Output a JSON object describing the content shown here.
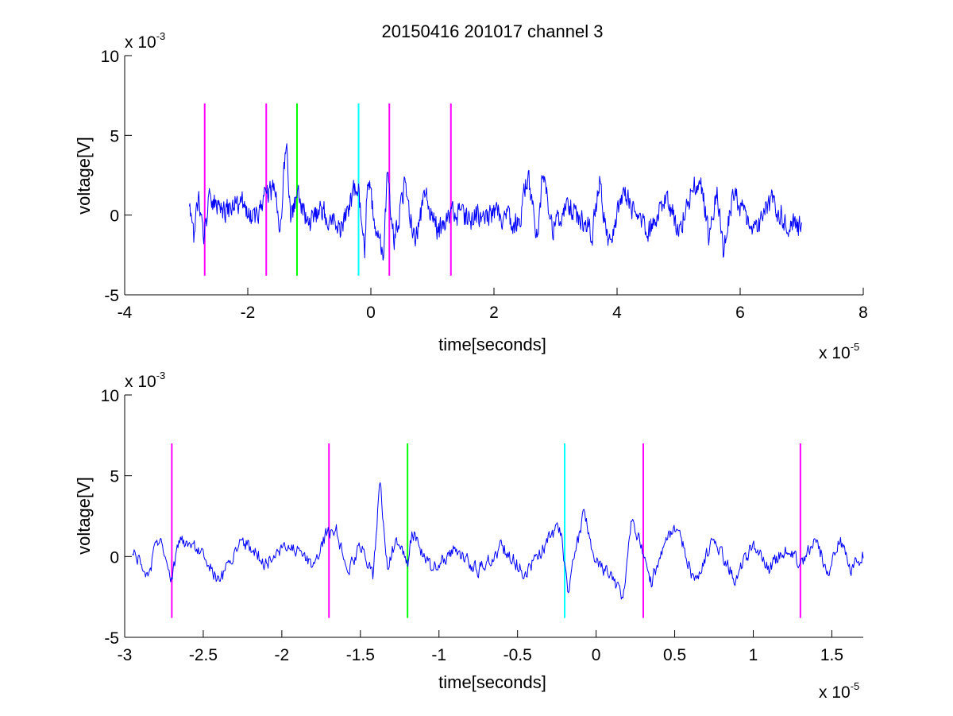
{
  "figure_title": "20150416 201017 channel 3",
  "chart_data": [
    {
      "type": "line",
      "title": "20150416 201017 channel 3",
      "xlabel": "time[seconds]",
      "ylabel": "voltage[V]",
      "x_multiplier_label": "x 10",
      "x_multiplier_exp": "-5",
      "y_multiplier_label": "x 10",
      "y_multiplier_exp": "-3",
      "xlim": [
        -4,
        8
      ],
      "ylim": [
        -5,
        10
      ],
      "x_scale": 1e-05,
      "y_scale": 0.001,
      "xticks": [
        -4,
        -2,
        0,
        2,
        4,
        6,
        8
      ],
      "xtick_labels": [
        "-4",
        "-2",
        "0",
        "2",
        "4",
        "6",
        "8"
      ],
      "yticks": [
        -5,
        0,
        5,
        10
      ],
      "ytick_labels": [
        "-5",
        "0",
        "5",
        "10"
      ],
      "grid": false,
      "signal": {
        "color": "#0000ff",
        "x_start": -2.95,
        "x_end": 7.0,
        "keypoints": [
          [
            -2.95,
            0.6
          ],
          [
            -2.88,
            -2.0
          ],
          [
            -2.8,
            1.3
          ],
          [
            -2.72,
            -2.3
          ],
          [
            -2.62,
            1.5
          ],
          [
            -2.4,
            0.3
          ],
          [
            -2.1,
            1.2
          ],
          [
            -1.9,
            -0.5
          ],
          [
            -1.72,
            1.5
          ],
          [
            -1.55,
            2.2
          ],
          [
            -1.47,
            -1.4
          ],
          [
            -1.38,
            6.3
          ],
          [
            -1.3,
            -0.4
          ],
          [
            -1.2,
            1.8
          ],
          [
            -1.0,
            -0.8
          ],
          [
            -0.8,
            0.4
          ],
          [
            -0.5,
            -1.2
          ],
          [
            -0.3,
            1.6
          ],
          [
            -0.22,
            2.8
          ],
          [
            -0.1,
            -2.7
          ],
          [
            -0.05,
            3.5
          ],
          [
            0.05,
            -0.5
          ],
          [
            0.2,
            -3.2
          ],
          [
            0.27,
            3.4
          ],
          [
            0.38,
            -2.3
          ],
          [
            0.55,
            2.8
          ],
          [
            0.72,
            -2.4
          ],
          [
            0.88,
            1.8
          ],
          [
            1.1,
            -1.5
          ],
          [
            1.3,
            0.3
          ],
          [
            1.6,
            -0.3
          ],
          [
            2.0,
            0.2
          ],
          [
            2.4,
            -0.8
          ],
          [
            2.55,
            3.5
          ],
          [
            2.7,
            -2.0
          ],
          [
            2.8,
            3.8
          ],
          [
            2.95,
            -1.2
          ],
          [
            3.2,
            1.0
          ],
          [
            3.6,
            -1.5
          ],
          [
            3.72,
            3.3
          ],
          [
            3.85,
            -2.6
          ],
          [
            4.1,
            1.8
          ],
          [
            4.5,
            -1.5
          ],
          [
            4.8,
            1.5
          ],
          [
            5.0,
            -1.3
          ],
          [
            5.2,
            1.8
          ],
          [
            5.35,
            3.2
          ],
          [
            5.5,
            -2.3
          ],
          [
            5.62,
            2.5
          ],
          [
            5.72,
            -3.2
          ],
          [
            5.9,
            2.0
          ],
          [
            6.2,
            -1.8
          ],
          [
            6.5,
            1.2
          ],
          [
            6.8,
            -0.9
          ],
          [
            7.0,
            -1.1
          ]
        ]
      },
      "markers": [
        {
          "x": -2.7,
          "color": "#ff00ff",
          "y0": -3.8,
          "y1": 7.0
        },
        {
          "x": -1.7,
          "color": "#ff00ff",
          "y0": -3.8,
          "y1": 7.0
        },
        {
          "x": -1.2,
          "color": "#00ff00",
          "y0": -3.8,
          "y1": 7.0
        },
        {
          "x": -0.2,
          "color": "#00ffff",
          "y0": -3.8,
          "y1": 7.0
        },
        {
          "x": 0.3,
          "color": "#ff00ff",
          "y0": -3.8,
          "y1": 7.0
        },
        {
          "x": 1.3,
          "color": "#ff00ff",
          "y0": -3.8,
          "y1": 7.0
        }
      ]
    },
    {
      "type": "line",
      "xlabel": "time[seconds]",
      "ylabel": "voltage[V]",
      "x_multiplier_label": "x 10",
      "x_multiplier_exp": "-5",
      "y_multiplier_label": "x 10",
      "y_multiplier_exp": "-3",
      "xlim": [
        -3.0,
        1.7
      ],
      "ylim": [
        -5,
        10
      ],
      "x_scale": 1e-05,
      "y_scale": 0.001,
      "xticks": [
        -3,
        -2.5,
        -2,
        -1.5,
        -1,
        -0.5,
        0,
        0.5,
        1,
        1.5
      ],
      "xtick_labels": [
        "-3",
        "-2.5",
        "-2",
        "-1.5",
        "-1",
        "-0.5",
        "0",
        "0.5",
        "1",
        "1.5"
      ],
      "yticks": [
        -5,
        0,
        5,
        10
      ],
      "ytick_labels": [
        "-5",
        "0",
        "5",
        "10"
      ],
      "grid": false,
      "signal": {
        "color": "#0000ff",
        "x_start": -2.95,
        "x_end": 1.7,
        "keypoints": [
          [
            -2.95,
            0.6
          ],
          [
            -2.9,
            -0.6
          ],
          [
            -2.85,
            -2.0
          ],
          [
            -2.8,
            1.2
          ],
          [
            -2.75,
            0.8
          ],
          [
            -2.71,
            -2.3
          ],
          [
            -2.65,
            1.5
          ],
          [
            -2.5,
            0.2
          ],
          [
            -2.4,
            -2.1
          ],
          [
            -2.25,
            1.4
          ],
          [
            -2.1,
            -0.6
          ],
          [
            -1.95,
            1.0
          ],
          [
            -1.8,
            -0.8
          ],
          [
            -1.72,
            1.8
          ],
          [
            -1.65,
            2.1
          ],
          [
            -1.58,
            -1.5
          ],
          [
            -1.5,
            1.0
          ],
          [
            -1.42,
            -1.7
          ],
          [
            -1.375,
            6.3
          ],
          [
            -1.33,
            -0.7
          ],
          [
            -1.27,
            1.5
          ],
          [
            -1.2,
            -0.6
          ],
          [
            -1.17,
            2.1
          ],
          [
            -1.05,
            -1.1
          ],
          [
            -0.9,
            0.6
          ],
          [
            -0.75,
            -1.1
          ],
          [
            -0.6,
            0.8
          ],
          [
            -0.45,
            -1.4
          ],
          [
            -0.3,
            1.4
          ],
          [
            -0.23,
            2.5
          ],
          [
            -0.18,
            -2.7
          ],
          [
            -0.08,
            3.5
          ],
          [
            0.0,
            -0.4
          ],
          [
            0.1,
            -1.8
          ],
          [
            0.17,
            -3.3
          ],
          [
            0.23,
            3.3
          ],
          [
            0.35,
            -2.2
          ],
          [
            0.45,
            1.8
          ],
          [
            0.52,
            2.6
          ],
          [
            0.62,
            -2.2
          ],
          [
            0.75,
            1.6
          ],
          [
            0.88,
            -2.0
          ],
          [
            1.0,
            1.0
          ],
          [
            1.1,
            -1.0
          ],
          [
            1.2,
            0.5
          ],
          [
            1.3,
            -0.5
          ],
          [
            1.4,
            1.2
          ],
          [
            1.48,
            -1.4
          ],
          [
            1.55,
            1.6
          ],
          [
            1.62,
            -1.1
          ],
          [
            1.7,
            0.1
          ]
        ]
      },
      "markers": [
        {
          "x": -2.7,
          "color": "#ff00ff",
          "y0": -3.8,
          "y1": 7.0
        },
        {
          "x": -1.7,
          "color": "#ff00ff",
          "y0": -3.8,
          "y1": 7.0
        },
        {
          "x": -1.2,
          "color": "#00ff00",
          "y0": -3.8,
          "y1": 7.0
        },
        {
          "x": -0.2,
          "color": "#00ffff",
          "y0": -3.8,
          "y1": 7.0
        },
        {
          "x": 0.3,
          "color": "#ff00ff",
          "y0": -3.8,
          "y1": 7.0
        },
        {
          "x": 1.3,
          "color": "#ff00ff",
          "y0": -3.8,
          "y1": 7.0
        }
      ]
    }
  ]
}
